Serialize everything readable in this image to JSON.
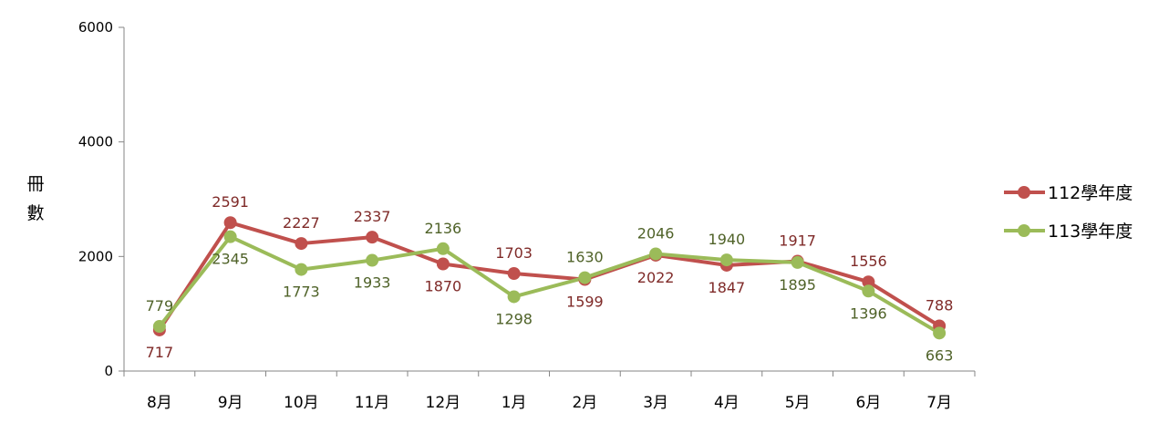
{
  "chart_data": {
    "type": "line",
    "categories": [
      "8月",
      "9月",
      "10月",
      "11月",
      "12月",
      "1月",
      "2月",
      "3月",
      "4月",
      "5月",
      "6月",
      "7月"
    ],
    "ylabel": "冊數",
    "ylabel_chars": [
      "冊",
      "數"
    ],
    "ylim": [
      0,
      6000
    ],
    "yticks": [
      0,
      2000,
      4000,
      6000
    ],
    "grid": false,
    "legend_position": "right",
    "series": [
      {
        "name": "112學年度",
        "color": "#c0504d",
        "label_color": "#7f2a28",
        "values": [
          717,
          2591,
          2227,
          2337,
          1870,
          1703,
          1599,
          2022,
          1847,
          1917,
          1556,
          788
        ],
        "label_positions": [
          "below",
          "above",
          "above",
          "above",
          "below",
          "above",
          "below",
          "below",
          "below",
          "above",
          "above",
          "above"
        ]
      },
      {
        "name": "113學年度",
        "color": "#9bbb59",
        "label_color": "#4f6228",
        "values": [
          779,
          2345,
          1773,
          1933,
          2136,
          1298,
          1630,
          2046,
          1940,
          1895,
          1396,
          663
        ],
        "label_positions": [
          "above",
          "below",
          "below",
          "below",
          "above",
          "below",
          "above",
          "above",
          "above",
          "below",
          "below",
          "below"
        ]
      }
    ]
  }
}
